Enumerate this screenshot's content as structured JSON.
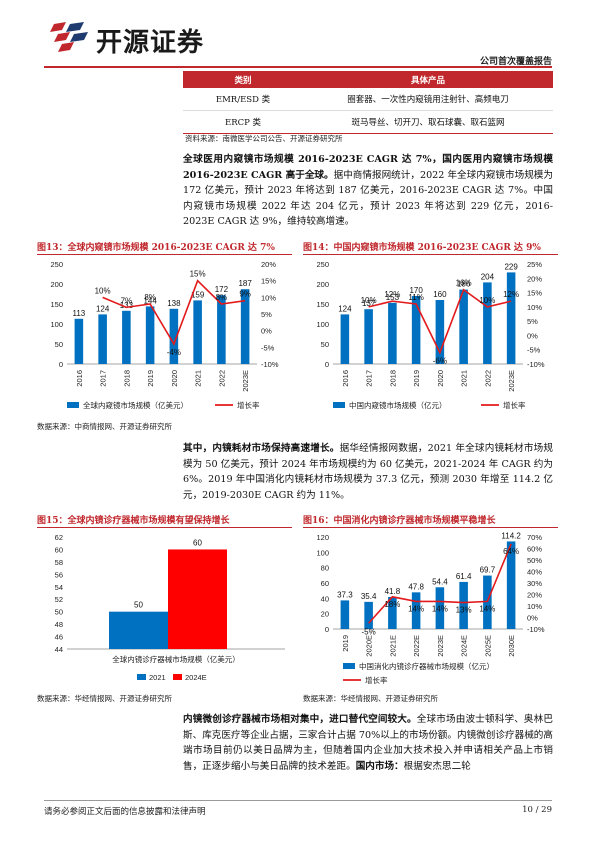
{
  "header": {
    "brand": "开源证券",
    "report_type": "公司首次覆盖报告"
  },
  "product_table": {
    "headers": [
      "类别",
      "具体产品"
    ],
    "rows": [
      {
        "category": "EMR/ESD 类",
        "products": "圈套器、一次性内窥镜用注射针、高频电刀"
      },
      {
        "category": "ERCP 类",
        "products": "斑马导丝、切开刀、取石球囊、取石篮网"
      }
    ],
    "source": "资料来源：南微医学公司公告、开源证券研究所"
  },
  "para1": {
    "bold": "全球医用内窥镜市场规模 2016-2023E CAGR 达 7%，国内医用内窥镜市场规模 2016-2023E CAGR 高于全球。",
    "text": "据中商情报网统计，2022 年全球内窥镜市场规模为 172 亿美元，预计 2023 年将达到 187 亿美元，2016-2023E CAGR 达 7%。中国内窥镜市场规模 2022 年达 204 亿元，预计 2023 年将达到 229 亿元，2016-2023E CAGR 达 9%，维持较高增速。"
  },
  "fig13": {
    "title": "图13：全球内窥镜市场规模 2016-2023E CAGR 达 7%",
    "legend_bar": "全球内窥镜市场规模（亿美元）",
    "legend_line": "增长率"
  },
  "fig14": {
    "title": "图14：中国内窥镜市场规模 2016-2023E CAGR 达 9%",
    "legend_bar": "中国内窥镜市场规模（亿元）",
    "legend_line": "增长率"
  },
  "source_a": "数据来源：中商情报网、开源证券研究所",
  "para2": {
    "bold": "其中，内镜耗材市场保持高速增长。",
    "text": "据华经情报网数据，2021 年全球内镜耗材市场规模为 50 亿美元，预计 2024 年市场规模约为 60 亿美元，2021-2024 年 CAGR 约为 6%。2019 年中国消化内镜耗材市场规模为 37.3 亿元，预测 2030 年增至 114.2 亿元，2019-2030E CAGR 约为 11%。"
  },
  "fig15": {
    "title": "图15：全球内镜诊疗器械市场规模有望保持增长",
    "category_label": "全球内镜诊疗器械市场规模（亿美元）"
  },
  "fig16": {
    "title": "图16：中国消化内镜诊疗器械市场规模平稳增长",
    "legend_bar": "中国消化内镜诊疗器械市场规模（亿元）",
    "legend_line": "增长率"
  },
  "source_b": "数据来源：华经情报网、开源证券研究所",
  "para3": {
    "bold1": "内镜微创诊疗器械市场相对集中，进口替代空间较大。",
    "text1": "全球市场由波士顿科学、奥林巴斯、库克医疗等企业占据，三家合计占据 70%以上的市场份额。内镜微创诊疗器械的高端市场目前仍以美日品牌为主，但随着国内企业加大技术投入并申请相关产品上市销售，正逐步缩小与美日品牌的技术差距。",
    "bold2": "国内市场：",
    "text2": "根据安杰思二轮"
  },
  "footer": {
    "disclaimer": "请务必参阅正文后面的信息披露和法律声明",
    "page": "10 / 29"
  },
  "colors": {
    "brand_red": "#c0282d",
    "bar_blue": "#0070c0",
    "line_red": "#e31a1c",
    "bar_red": "#ff0000"
  },
  "chart_data": [
    {
      "type": "bar+line",
      "categories": [
        "2016",
        "2017",
        "2018",
        "2019",
        "2020",
        "2021",
        "2022",
        "2023E"
      ],
      "series": [
        {
          "name": "全球内窥镜市场规模（亿美元）",
          "kind": "bar",
          "axis": "left",
          "values": [
            113,
            124,
            133,
            144,
            138,
            159,
            172,
            187
          ],
          "labels": [
            "113",
            "124",
            "133",
            "144",
            "138",
            "159",
            "172",
            "187"
          ]
        },
        {
          "name": "增长率",
          "kind": "line",
          "axis": "right",
          "values": [
            null,
            10,
            7,
            8,
            -4,
            15,
            8,
            9
          ],
          "labels": [
            "",
            "10%",
            "7%",
            "8%",
            "-4%",
            "15%",
            "8%",
            "9%"
          ]
        }
      ],
      "ylim": [
        0,
        250
      ],
      "y_ticks": [
        0,
        50,
        100,
        150,
        200,
        250
      ],
      "y2lim": [
        -10,
        20
      ],
      "y2_ticks": [
        "-10%",
        "-5%",
        "0%",
        "5%",
        "10%",
        "15%",
        "20%"
      ]
    },
    {
      "type": "bar+line",
      "categories": [
        "2016",
        "2017",
        "2018",
        "2019",
        "2020",
        "2021",
        "2022",
        "2023E"
      ],
      "series": [
        {
          "name": "中国内窥镜市场规模（亿元）",
          "kind": "bar",
          "axis": "left",
          "values": [
            124,
            137,
            153,
            170,
            160,
            186,
            204,
            229
          ],
          "labels": [
            "124",
            "137",
            "153",
            "170",
            "160",
            "186",
            "204",
            "229"
          ]
        },
        {
          "name": "增长率",
          "kind": "line",
          "axis": "right",
          "values": [
            null,
            10,
            12,
            11,
            -6,
            16,
            10,
            12
          ],
          "labels": [
            "",
            "10%",
            "12%",
            "11%",
            "-6%",
            "16%",
            "10%",
            "12%"
          ]
        }
      ],
      "ylim": [
        0,
        250
      ],
      "y_ticks": [
        0,
        50,
        100,
        150,
        200,
        250
      ],
      "y2lim": [
        -10,
        25
      ],
      "y2_ticks": [
        "-10%",
        "-5%",
        "0%",
        "5%",
        "10%",
        "15%",
        "20%",
        "25%"
      ]
    },
    {
      "type": "bar",
      "categories": [
        "全球内镜诊疗器械市场规模（亿美元）"
      ],
      "series": [
        {
          "name": "2021",
          "values": [
            50
          ],
          "labels": [
            "50"
          ]
        },
        {
          "name": "2024E",
          "values": [
            60
          ],
          "labels": [
            "60"
          ]
        }
      ],
      "ylim": [
        44,
        62
      ],
      "y_ticks": [
        44,
        46,
        48,
        50,
        52,
        54,
        56,
        58,
        60,
        62
      ]
    },
    {
      "type": "bar+line",
      "categories": [
        "2019",
        "2020E",
        "2021E",
        "2022E",
        "2023E",
        "2024E",
        "2025E",
        "2030E"
      ],
      "series": [
        {
          "name": "中国消化内镜诊疗器械市场规模（亿元）",
          "kind": "bar",
          "axis": "left",
          "values": [
            37.3,
            35.4,
            41.8,
            47.8,
            54.4,
            61.4,
            69.7,
            114.2
          ],
          "labels": [
            "37.3",
            "35.4",
            "41.8",
            "47.8",
            "54.4",
            "61.4",
            "69.7",
            "114.2"
          ]
        },
        {
          "name": "增长率",
          "kind": "line",
          "axis": "right",
          "values": [
            null,
            -5,
            18,
            14,
            14,
            13,
            14,
            64
          ],
          "labels": [
            "",
            "-5%",
            "18%",
            "14%",
            "14%",
            "13%",
            "14%",
            "64%"
          ]
        }
      ],
      "ylim": [
        0,
        120
      ],
      "y_ticks": [
        0,
        20,
        40,
        60,
        80,
        100,
        120
      ],
      "y2lim": [
        -10,
        70
      ],
      "y2_ticks": [
        "-10%",
        "0%",
        "10%",
        "20%",
        "30%",
        "40%",
        "50%",
        "60%",
        "70%"
      ]
    }
  ]
}
